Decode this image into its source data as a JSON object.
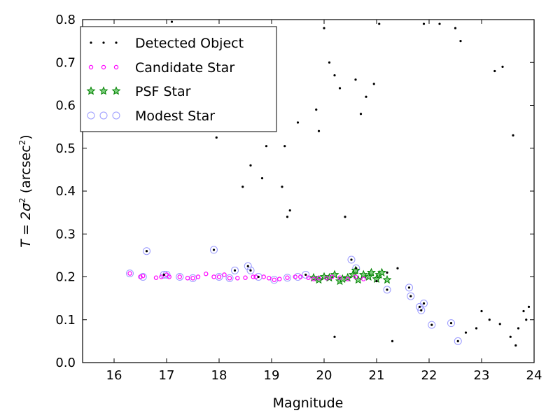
{
  "chart_data": {
    "type": "scatter",
    "title": "",
    "xlabel": "Magnitude",
    "ylabel": {
      "main": "T = 2σ",
      "sup1": "2",
      "unit": " (arcsec",
      "sup2": "2",
      "close": ")"
    },
    "xlim": [
      15.4,
      24.0
    ],
    "ylim": [
      0.0,
      0.8
    ],
    "xticks": [
      "16",
      "17",
      "18",
      "19",
      "20",
      "21",
      "22",
      "23",
      "24"
    ],
    "yticks": [
      "0.0",
      "0.1",
      "0.2",
      "0.3",
      "0.4",
      "0.5",
      "0.6",
      "0.7",
      "0.8"
    ],
    "grid": false,
    "legend_position": "top-left",
    "colors": {
      "detected": "#000000",
      "candidate": "#ff00ff",
      "psf": "#008000",
      "modest": "#9999ff"
    },
    "series": [
      {
        "name": "Detected Object",
        "marker": "dot",
        "color": "#000000",
        "points": [
          [
            16.62,
            0.26
          ],
          [
            16.95,
            0.205
          ],
          [
            17.9,
            0.263
          ],
          [
            18.3,
            0.215
          ],
          [
            18.55,
            0.225
          ],
          [
            18.6,
            0.215
          ],
          [
            18.75,
            0.2
          ],
          [
            19.65,
            0.205
          ],
          [
            20.52,
            0.24
          ],
          [
            20.61,
            0.22
          ],
          [
            21.2,
            0.17
          ],
          [
            21.62,
            0.175
          ],
          [
            21.65,
            0.155
          ],
          [
            21.82,
            0.13
          ],
          [
            21.85,
            0.122
          ],
          [
            21.9,
            0.138
          ],
          [
            22.05,
            0.088
          ],
          [
            22.42,
            0.092
          ],
          [
            22.55,
            0.05
          ],
          [
            17.1,
            0.795
          ],
          [
            17.95,
            0.525
          ],
          [
            18.45,
            0.41
          ],
          [
            18.6,
            0.46
          ],
          [
            18.82,
            0.43
          ],
          [
            18.9,
            0.505
          ],
          [
            19.05,
            0.59
          ],
          [
            19.2,
            0.41
          ],
          [
            19.25,
            0.505
          ],
          [
            19.3,
            0.34
          ],
          [
            19.35,
            0.355
          ],
          [
            19.5,
            0.56
          ],
          [
            19.85,
            0.59
          ],
          [
            19.9,
            0.54
          ],
          [
            20.0,
            0.78
          ],
          [
            20.1,
            0.7
          ],
          [
            20.2,
            0.67
          ],
          [
            20.3,
            0.64
          ],
          [
            20.4,
            0.34
          ],
          [
            20.6,
            0.66
          ],
          [
            20.7,
            0.58
          ],
          [
            20.8,
            0.62
          ],
          [
            20.95,
            0.65
          ],
          [
            21.05,
            0.79
          ],
          [
            20.2,
            0.06
          ],
          [
            21.3,
            0.05
          ],
          [
            21.0,
            0.19
          ],
          [
            21.2,
            0.21
          ],
          [
            21.4,
            0.22
          ],
          [
            22.7,
            0.07
          ],
          [
            22.9,
            0.08
          ],
          [
            23.0,
            0.12
          ],
          [
            23.15,
            0.1
          ],
          [
            23.35,
            0.09
          ],
          [
            23.55,
            0.06
          ],
          [
            23.65,
            0.04
          ],
          [
            23.7,
            0.08
          ],
          [
            23.8,
            0.12
          ],
          [
            23.85,
            0.1
          ],
          [
            23.9,
            0.13
          ],
          [
            23.6,
            0.53
          ],
          [
            23.25,
            0.68
          ],
          [
            23.4,
            0.69
          ],
          [
            21.9,
            0.79
          ],
          [
            22.2,
            0.79
          ],
          [
            22.5,
            0.78
          ],
          [
            22.6,
            0.75
          ]
        ]
      },
      {
        "name": "Candidate Star",
        "marker": "small-circle",
        "color": "#ff00ff",
        "points": [
          [
            16.3,
            0.208
          ],
          [
            16.5,
            0.2
          ],
          [
            16.55,
            0.202
          ],
          [
            16.8,
            0.198
          ],
          [
            16.9,
            0.2
          ],
          [
            17.0,
            0.205
          ],
          [
            17.05,
            0.2
          ],
          [
            17.25,
            0.2
          ],
          [
            17.4,
            0.197
          ],
          [
            17.5,
            0.197
          ],
          [
            17.6,
            0.2
          ],
          [
            17.75,
            0.207
          ],
          [
            17.9,
            0.2
          ],
          [
            18.0,
            0.2
          ],
          [
            18.1,
            0.205
          ],
          [
            18.2,
            0.197
          ],
          [
            18.35,
            0.197
          ],
          [
            18.5,
            0.198
          ],
          [
            18.65,
            0.2
          ],
          [
            18.7,
            0.2
          ],
          [
            18.85,
            0.2
          ],
          [
            18.95,
            0.197
          ],
          [
            19.05,
            0.193
          ],
          [
            19.15,
            0.195
          ],
          [
            19.3,
            0.198
          ],
          [
            19.45,
            0.2
          ],
          [
            19.55,
            0.2
          ],
          [
            19.7,
            0.198
          ],
          [
            19.8,
            0.195
          ],
          [
            19.9,
            0.197
          ],
          [
            20.05,
            0.197
          ],
          [
            20.15,
            0.2
          ],
          [
            20.3,
            0.198
          ],
          [
            20.45,
            0.195
          ],
          [
            20.6,
            0.2
          ],
          [
            20.75,
            0.195
          ]
        ]
      },
      {
        "name": "PSF Star",
        "marker": "star",
        "color": "#008000",
        "points": [
          [
            19.8,
            0.198
          ],
          [
            19.9,
            0.193
          ],
          [
            20.0,
            0.2
          ],
          [
            20.1,
            0.198
          ],
          [
            20.2,
            0.205
          ],
          [
            20.3,
            0.19
          ],
          [
            20.35,
            0.195
          ],
          [
            20.45,
            0.198
          ],
          [
            20.55,
            0.205
          ],
          [
            20.6,
            0.215
          ],
          [
            20.65,
            0.193
          ],
          [
            20.75,
            0.205
          ],
          [
            20.85,
            0.2
          ],
          [
            20.9,
            0.21
          ],
          [
            21.0,
            0.195
          ],
          [
            21.05,
            0.205
          ],
          [
            21.1,
            0.21
          ],
          [
            21.2,
            0.193
          ]
        ]
      },
      {
        "name": "Modest Star",
        "marker": "open-circle",
        "color": "#9999ff",
        "points": [
          [
            16.62,
            0.26
          ],
          [
            16.3,
            0.208
          ],
          [
            16.55,
            0.2
          ],
          [
            16.95,
            0.205
          ],
          [
            17.0,
            0.205
          ],
          [
            17.25,
            0.2
          ],
          [
            17.5,
            0.197
          ],
          [
            17.9,
            0.263
          ],
          [
            18.0,
            0.2
          ],
          [
            18.2,
            0.197
          ],
          [
            18.3,
            0.215
          ],
          [
            18.55,
            0.225
          ],
          [
            18.6,
            0.215
          ],
          [
            18.75,
            0.2
          ],
          [
            19.05,
            0.193
          ],
          [
            19.3,
            0.198
          ],
          [
            19.5,
            0.2
          ],
          [
            19.65,
            0.205
          ],
          [
            20.52,
            0.24
          ],
          [
            20.61,
            0.22
          ],
          [
            21.2,
            0.17
          ],
          [
            21.62,
            0.175
          ],
          [
            21.65,
            0.155
          ],
          [
            21.82,
            0.13
          ],
          [
            21.85,
            0.122
          ],
          [
            21.9,
            0.138
          ],
          [
            22.05,
            0.088
          ],
          [
            22.42,
            0.092
          ],
          [
            22.55,
            0.05
          ]
        ]
      }
    ]
  }
}
